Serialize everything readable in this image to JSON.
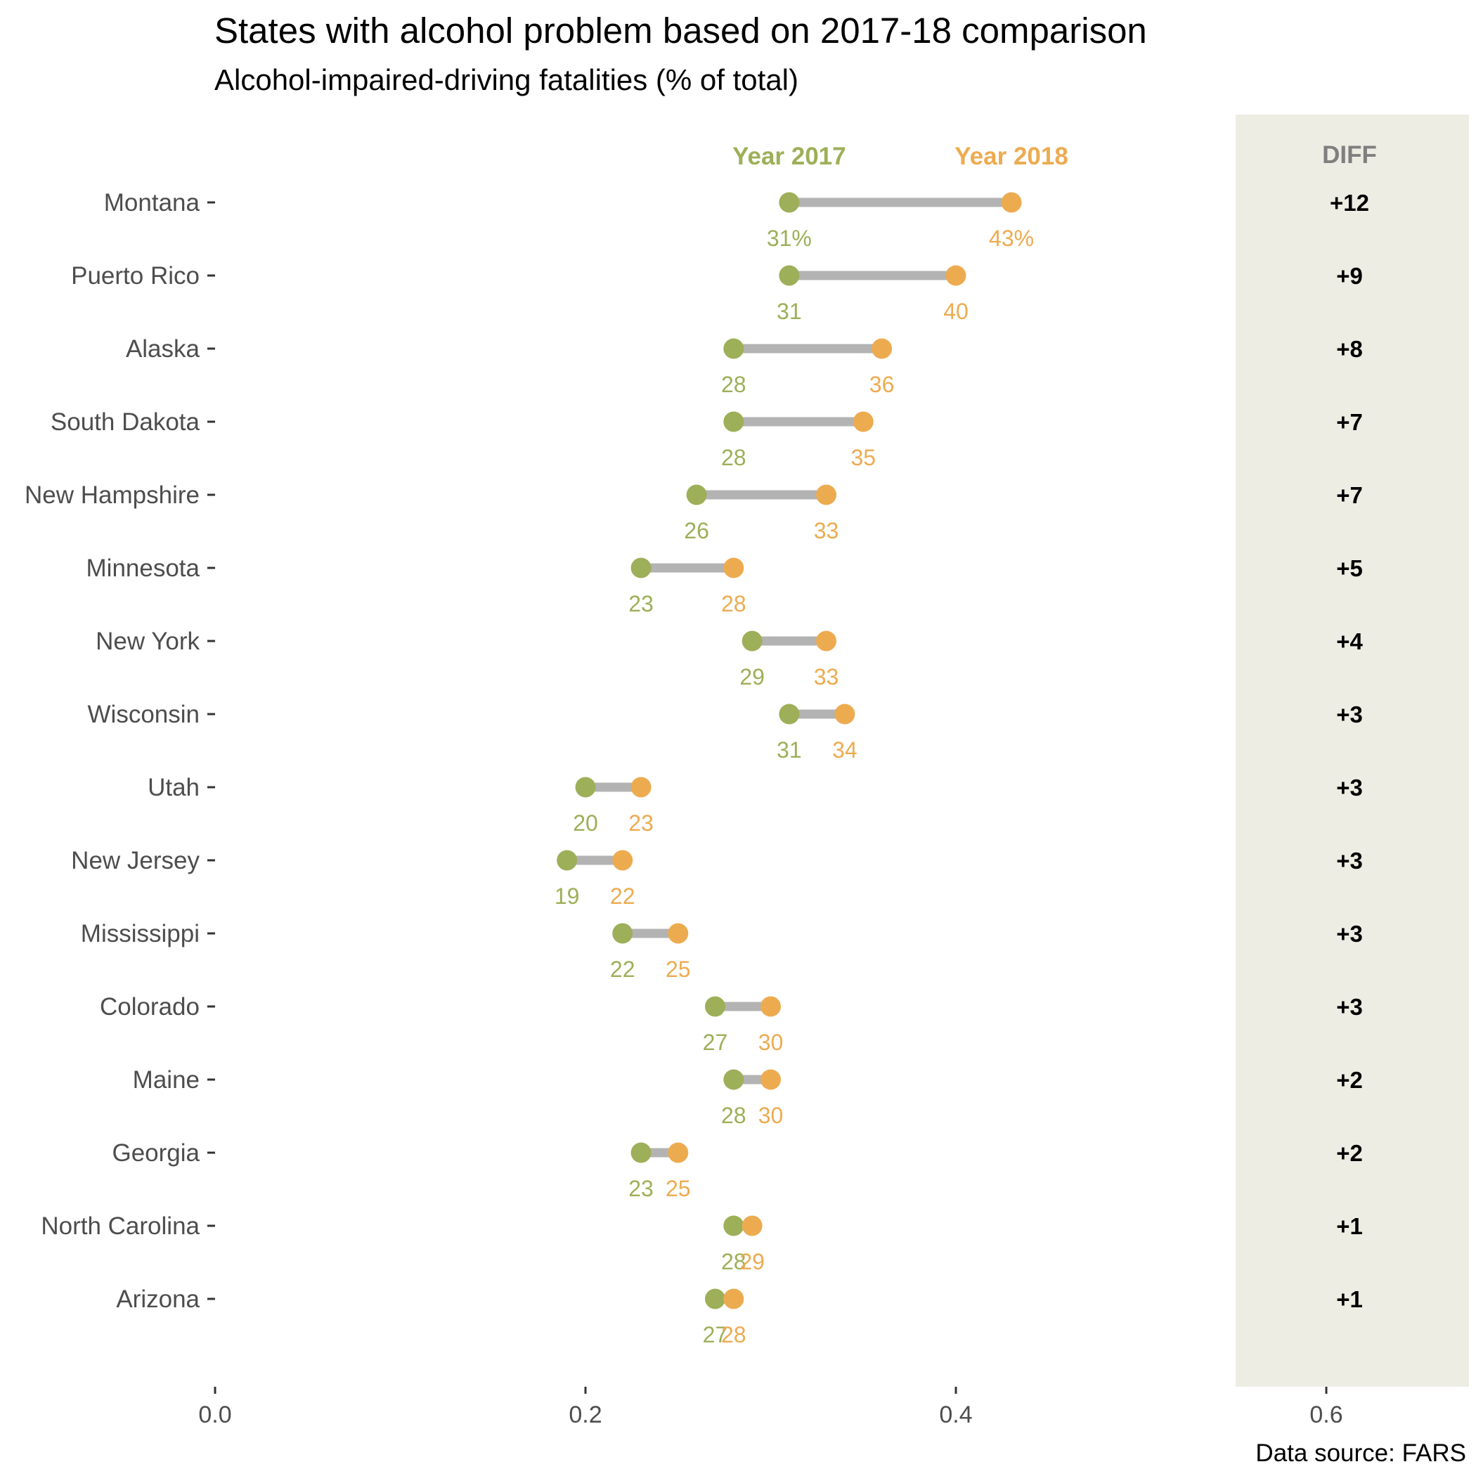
{
  "chart_data": {
    "type": "dumbbell",
    "title": "States with alcohol problem based on 2017-18 comparison",
    "subtitle": "Alcohol-impaired-driving fatalities (% of total)",
    "caption": "Data source: FARS",
    "xlim": [
      0,
      0.68
    ],
    "x_ticks": [
      0.0,
      0.2,
      0.4,
      0.6
    ],
    "x_tick_labels": [
      "0.0",
      "0.2",
      "0.4",
      "0.6"
    ],
    "series": [
      {
        "name": "Year 2017",
        "color": "#9daf58"
      },
      {
        "name": "Year 2018",
        "color": "#edab50"
      }
    ],
    "diff_header": "DIFF",
    "diff_panel_color": "#edede3",
    "connector_color": "#b3b3b3",
    "rows": [
      {
        "state": "Montana",
        "y2017": 0.31,
        "y2018": 0.43,
        "label2017": "31%",
        "label2018": "43%",
        "diff": "+12"
      },
      {
        "state": "Puerto Rico",
        "y2017": 0.31,
        "y2018": 0.4,
        "label2017": "31",
        "label2018": "40",
        "diff": "+9"
      },
      {
        "state": "Alaska",
        "y2017": 0.28,
        "y2018": 0.36,
        "label2017": "28",
        "label2018": "36",
        "diff": "+8"
      },
      {
        "state": "South Dakota",
        "y2017": 0.28,
        "y2018": 0.35,
        "label2017": "28",
        "label2018": "35",
        "diff": "+7"
      },
      {
        "state": "New Hampshire",
        "y2017": 0.26,
        "y2018": 0.33,
        "label2017": "26",
        "label2018": "33",
        "diff": "+7"
      },
      {
        "state": "Minnesota",
        "y2017": 0.23,
        "y2018": 0.28,
        "label2017": "23",
        "label2018": "28",
        "diff": "+5"
      },
      {
        "state": "New York",
        "y2017": 0.29,
        "y2018": 0.33,
        "label2017": "29",
        "label2018": "33",
        "diff": "+4"
      },
      {
        "state": "Wisconsin",
        "y2017": 0.31,
        "y2018": 0.34,
        "label2017": "31",
        "label2018": "34",
        "diff": "+3"
      },
      {
        "state": "Utah",
        "y2017": 0.2,
        "y2018": 0.23,
        "label2017": "20",
        "label2018": "23",
        "diff": "+3"
      },
      {
        "state": "New Jersey",
        "y2017": 0.19,
        "y2018": 0.22,
        "label2017": "19",
        "label2018": "22",
        "diff": "+3"
      },
      {
        "state": "Mississippi",
        "y2017": 0.22,
        "y2018": 0.25,
        "label2017": "22",
        "label2018": "25",
        "diff": "+3"
      },
      {
        "state": "Colorado",
        "y2017": 0.27,
        "y2018": 0.3,
        "label2017": "27",
        "label2018": "30",
        "diff": "+3"
      },
      {
        "state": "Maine",
        "y2017": 0.28,
        "y2018": 0.3,
        "label2017": "28",
        "label2018": "30",
        "diff": "+2"
      },
      {
        "state": "Georgia",
        "y2017": 0.23,
        "y2018": 0.25,
        "label2017": "23",
        "label2018": "25",
        "diff": "+2"
      },
      {
        "state": "North Carolina",
        "y2017": 0.28,
        "y2018": 0.29,
        "label2017": "28",
        "label2018": "29",
        "diff": "+1"
      },
      {
        "state": "Arizona",
        "y2017": 0.27,
        "y2018": 0.28,
        "label2017": "27",
        "label2018": "28",
        "diff": "+1"
      }
    ]
  }
}
